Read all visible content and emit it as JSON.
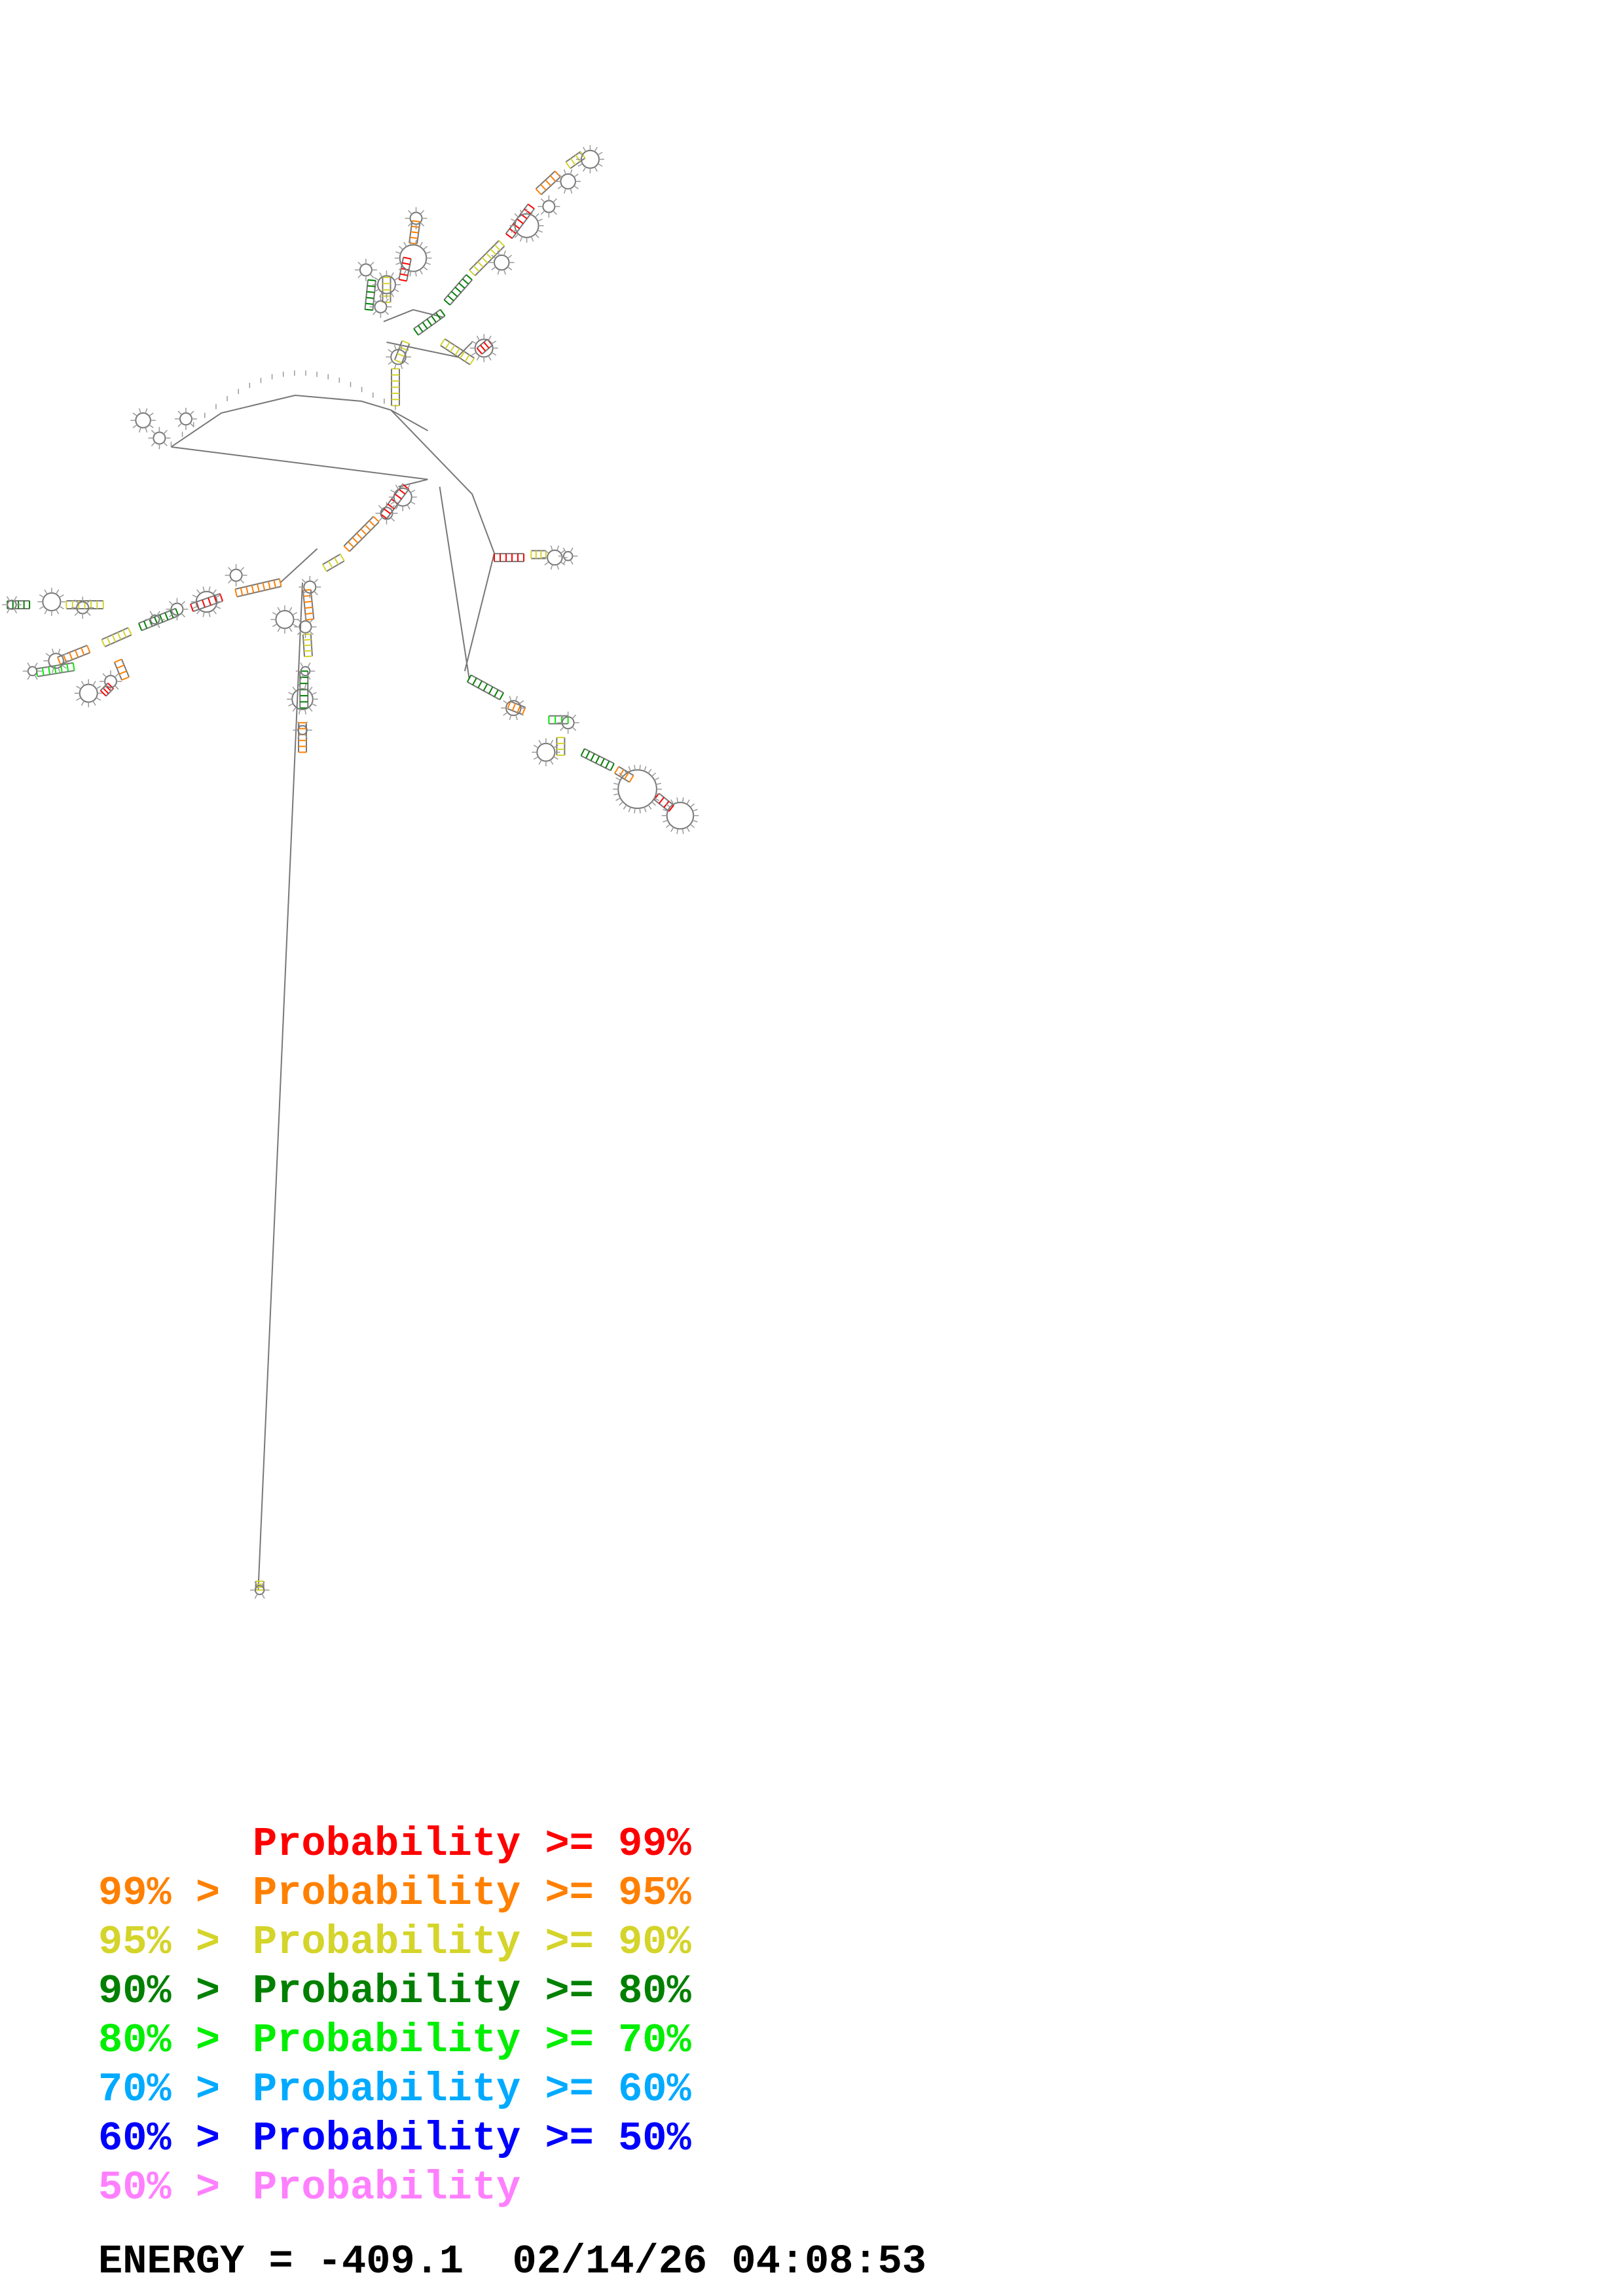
{
  "legend": {
    "items": [
      {
        "prefix": "",
        "text": "Probability >= 99%",
        "color": "#ff0000"
      },
      {
        "prefix": "99% >",
        "text": "Probability >= 95%",
        "color": "#ff8000"
      },
      {
        "prefix": "95% >",
        "text": "Probability >= 90%",
        "color": "#d4d42a"
      },
      {
        "prefix": "90% >",
        "text": "Probability >= 80%",
        "color": "#008000"
      },
      {
        "prefix": "80% >",
        "text": "Probability >= 70%",
        "color": "#00ee00"
      },
      {
        "prefix": "70% >",
        "text": "Probability >= 60%",
        "color": "#00aaff"
      },
      {
        "prefix": "60% >",
        "text": "Probability >= 50%",
        "color": "#0000ff"
      },
      {
        "prefix": "50% >",
        "text": "Probability",
        "color": "#ff80ff"
      }
    ]
  },
  "footer": {
    "energy": "ENERGY = -409.1  02/14/26 04:08:53"
  },
  "diagram": {
    "line_color": "#777777",
    "pair_colors": [
      "#ff0000",
      "#ff8000",
      "#d4d42a",
      "#008000",
      "#00ee00",
      "#00aaff",
      "#0000ff",
      "#ff80ff"
    ]
  }
}
